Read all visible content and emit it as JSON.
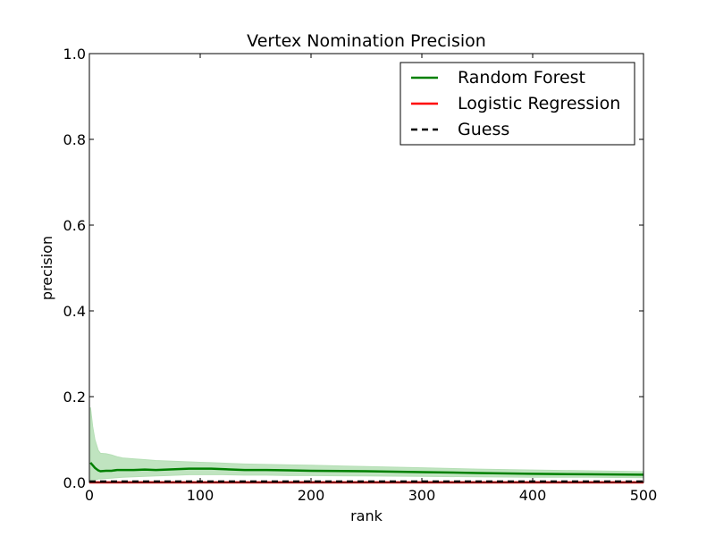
{
  "chart_data": {
    "type": "line",
    "title": "Vertex Nomination Precision",
    "xlabel": "rank",
    "ylabel": "precision",
    "xlim": [
      0,
      500
    ],
    "ylim": [
      0.0,
      1.0
    ],
    "xticks": [
      0,
      100,
      200,
      300,
      400,
      500
    ],
    "xtick_labels": [
      "0",
      "100",
      "200",
      "300",
      "400",
      "500"
    ],
    "yticks": [
      0.0,
      0.2,
      0.4,
      0.6,
      0.8,
      1.0
    ],
    "ytick_labels": [
      "0.0",
      "0.2",
      "0.4",
      "0.6",
      "0.8",
      "1.0"
    ],
    "grid": false,
    "legend_position": "top-right",
    "series": [
      {
        "name": "Random Forest",
        "color": "#008000",
        "style": "solid",
        "x": [
          1,
          3,
          5,
          8,
          10,
          15,
          20,
          25,
          30,
          40,
          50,
          60,
          70,
          80,
          90,
          100,
          110,
          120,
          140,
          160,
          180,
          200,
          250,
          300,
          350,
          400,
          450,
          500
        ],
        "y": [
          0.046,
          0.04,
          0.034,
          0.028,
          0.026,
          0.027,
          0.027,
          0.029,
          0.029,
          0.029,
          0.03,
          0.029,
          0.03,
          0.031,
          0.032,
          0.032,
          0.032,
          0.031,
          0.029,
          0.029,
          0.028,
          0.027,
          0.026,
          0.024,
          0.022,
          0.02,
          0.019,
          0.018
        ],
        "band_upper": [
          0.175,
          0.13,
          0.1,
          0.075,
          0.068,
          0.067,
          0.064,
          0.06,
          0.057,
          0.055,
          0.053,
          0.051,
          0.05,
          0.049,
          0.048,
          0.047,
          0.046,
          0.045,
          0.043,
          0.042,
          0.041,
          0.04,
          0.037,
          0.034,
          0.031,
          0.029,
          0.027,
          0.025
        ],
        "band_lower": [
          0.0,
          0.0,
          0.005,
          0.008,
          0.008,
          0.009,
          0.01,
          0.011,
          0.012,
          0.013,
          0.014,
          0.015,
          0.016,
          0.017,
          0.018,
          0.018,
          0.018,
          0.018,
          0.017,
          0.017,
          0.016,
          0.016,
          0.015,
          0.014,
          0.013,
          0.012,
          0.012,
          0.011
        ],
        "band_color": "#b5dfb5"
      },
      {
        "name": "Logistic Regression",
        "color": "#ff0000",
        "style": "solid",
        "x": [
          0,
          500
        ],
        "y": [
          0.0,
          0.0
        ]
      },
      {
        "name": "Guess",
        "color": "#000000",
        "style": "dashed",
        "x": [
          0,
          500
        ],
        "y": [
          0.002,
          0.002
        ]
      }
    ]
  }
}
